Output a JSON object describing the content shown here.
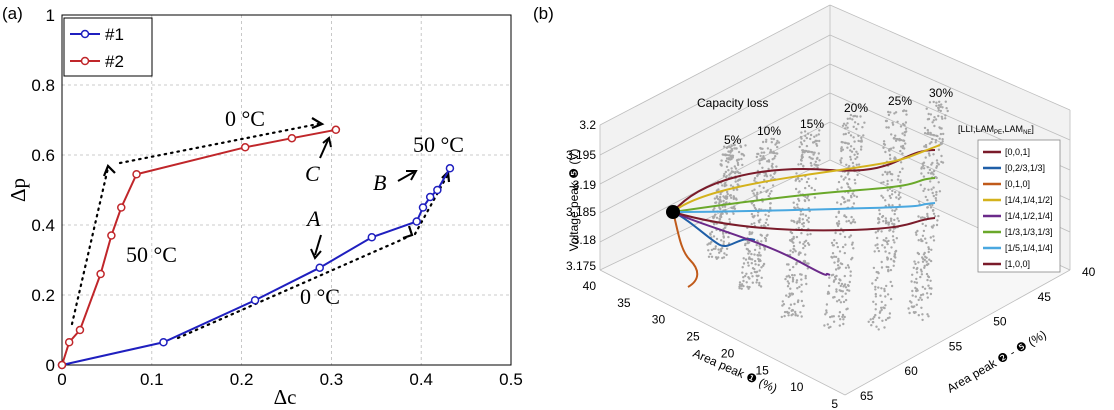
{
  "chart_data": [
    {
      "panel_label": "(a)",
      "type": "line",
      "xlabel": "Δc",
      "ylabel": "Δp",
      "xlim": [
        0,
        0.5
      ],
      "ylim": [
        0,
        1
      ],
      "xticks": [
        "0",
        "0.1",
        "0.2",
        "0.3",
        "0.4",
        "0.5"
      ],
      "yticks": [
        "0",
        "0.2",
        "0.4",
        "0.6",
        "0.8",
        "1"
      ],
      "grid": true,
      "legend": "top-left",
      "series": [
        {
          "name": "#1",
          "color": "#1f1fbf",
          "x": [
            0,
            0.113,
            0.215,
            0.287,
            0.345,
            0.395,
            0.402,
            0.41,
            0.418,
            0.432
          ],
          "y": [
            0,
            0.065,
            0.185,
            0.278,
            0.365,
            0.41,
            0.45,
            0.48,
            0.5,
            0.562
          ]
        },
        {
          "name": "#2",
          "color": "#c0262a",
          "x": [
            0,
            0.008,
            0.02,
            0.043,
            0.055,
            0.066,
            0.083,
            0.204,
            0.256,
            0.305
          ],
          "y": [
            0,
            0.065,
            0.1,
            0.26,
            0.37,
            0.45,
            0.545,
            0.622,
            0.648,
            0.672
          ]
        }
      ],
      "annotations": {
        "A": "A",
        "B": "B",
        "C": "C",
        "temp_0C_top": "0 °C",
        "temp_50C_right": "50 °C",
        "temp_50C_left": "50 °C",
        "temp_0C_bottom": "0 °C"
      }
    },
    {
      "panel_label": "(b)",
      "type": "scatter",
      "title": "Capacity loss",
      "zlabel": "Voltage peak ❺ (V)",
      "xlabel": "Area peak ❶ (%)",
      "ylabel": "Area peak ❷ - ❺ (%)",
      "zticks": [
        "3.175",
        "3.18",
        "3.185",
        "3.19",
        "3.195",
        "3.2"
      ],
      "xticks": [
        "40",
        "35",
        "30",
        "25",
        "20",
        "15",
        "10",
        "5"
      ],
      "yticks": [
        "40",
        "45",
        "50",
        "55",
        "60",
        "65"
      ],
      "capacity_loss_labels": [
        "5%",
        "10%",
        "15%",
        "20%",
        "25%",
        "30%"
      ],
      "legend_title": "[LLI,LAM",
      "legend_title_sub1": "PE",
      "legend_title_mid": ",LAM",
      "legend_title_sub2": "NE",
      "legend_title_end": "]",
      "legend": [
        {
          "name": "[0,0,1]",
          "color": "#7a1b2a"
        },
        {
          "name": "[0,2/3,1/3]",
          "color": "#1f5fa8"
        },
        {
          "name": "[0,1,0]",
          "color": "#c05a1a"
        },
        {
          "name": "[1/4,1/4,1/2]",
          "color": "#d4b21c"
        },
        {
          "name": "[1/4,1/2,1/4]",
          "color": "#6b2a8a"
        },
        {
          "name": "[1/3,1/3,1/3]",
          "color": "#6aa82a"
        },
        {
          "name": "[1/5,1/4,1/4]",
          "color": "#4aa8e0"
        },
        {
          "name": "[1,0,0]",
          "color": "#7a1b2a"
        }
      ]
    }
  ]
}
